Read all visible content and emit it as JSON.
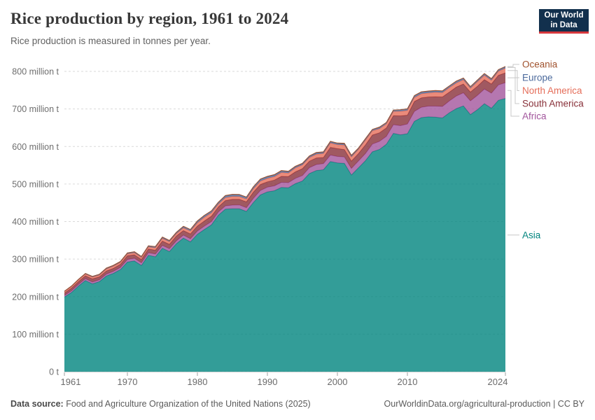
{
  "header": {
    "title": "Rice production by region, 1961 to 2024",
    "subtitle": "Rice production is measured in tonnes per year."
  },
  "logo": {
    "line1": "Our World",
    "line2": "in Data",
    "bg_color": "#12304d",
    "bar_color": "#d7383d"
  },
  "footer": {
    "source_label": "Data source:",
    "source_text": " Food and Agriculture Organization of the United Nations (2025)",
    "right_text": "OurWorldinData.org/agricultural-production | CC BY"
  },
  "chart_data": {
    "type": "area",
    "stacked": true,
    "title": "Rice production by region, 1961 to 2024",
    "subtitle": "Rice production is measured in tonnes per year.",
    "unit": "million tonnes per year",
    "xlabel": "",
    "ylabel": "",
    "ylim": [
      0,
      800
    ],
    "grid": "dashed-horizontal",
    "legend_position": "right",
    "x_ticks": [
      1961,
      1970,
      1980,
      1990,
      2000,
      2010,
      2024
    ],
    "y_ticks": [
      {
        "value": 0,
        "label": "0 t"
      },
      {
        "value": 100,
        "label": "100 million t"
      },
      {
        "value": 200,
        "label": "200 million t"
      },
      {
        "value": 300,
        "label": "300 million t"
      },
      {
        "value": 400,
        "label": "400 million t"
      },
      {
        "value": 500,
        "label": "500 million t"
      },
      {
        "value": 600,
        "label": "600 million t"
      },
      {
        "value": 700,
        "label": "700 million t"
      },
      {
        "value": 800,
        "label": "800 million t"
      }
    ],
    "years": [
      1961,
      1962,
      1963,
      1964,
      1965,
      1966,
      1967,
      1968,
      1969,
      1970,
      1971,
      1972,
      1973,
      1974,
      1975,
      1976,
      1977,
      1978,
      1979,
      1980,
      1981,
      1982,
      1983,
      1984,
      1985,
      1986,
      1987,
      1988,
      1989,
      1990,
      1991,
      1992,
      1993,
      1994,
      1995,
      1996,
      1997,
      1998,
      1999,
      2000,
      2001,
      2002,
      2003,
      2004,
      2005,
      2006,
      2007,
      2008,
      2009,
      2010,
      2011,
      2012,
      2013,
      2014,
      2015,
      2016,
      2017,
      2018,
      2019,
      2020,
      2021,
      2022,
      2023,
      2024
    ],
    "series": [
      {
        "name": "Asia",
        "color": "#00847E",
        "values": [
          199,
          211,
          228,
          243,
          234,
          240,
          255,
          262,
          272,
          292,
          295,
          283,
          310,
          306,
          329,
          320,
          341,
          356,
          346,
          366,
          379,
          391,
          417,
          433,
          434,
          434,
          427,
          451,
          471,
          479,
          482,
          491,
          490,
          501,
          508,
          528,
          536,
          538,
          560,
          556,
          555,
          524,
          543,
          562,
          586,
          592,
          606,
          635,
          631,
          634,
          667,
          677,
          679,
          678,
          676,
          690,
          701,
          708,
          685,
          698,
          714,
          702,
          723,
          728
        ]
      },
      {
        "name": "Africa",
        "color": "#A2559C",
        "values": [
          4.1,
          4.3,
          4.6,
          4.8,
          4.9,
          4.8,
          5.2,
          5.4,
          5.7,
          7.0,
          7.1,
          6.9,
          7.1,
          7.5,
          7.5,
          7.6,
          7.8,
          7.9,
          8.1,
          8.6,
          8.8,
          8.9,
          8.6,
          8.7,
          9.8,
          10.2,
          10.0,
          11.0,
          11.8,
          12.5,
          13.1,
          13.5,
          13.6,
          14.1,
          14.5,
          15.5,
          16.0,
          16.2,
          17.2,
          17.5,
          17.1,
          17.6,
          18.3,
          19.0,
          20.5,
          21.5,
          21.0,
          23.0,
          24.5,
          26.0,
          26.5,
          27.5,
          28.5,
          29.5,
          30.5,
          31.5,
          33.5,
          35.0,
          36.5,
          38.0,
          39.0,
          40.0,
          41.0,
          42.0
        ]
      },
      {
        "name": "South America",
        "color": "#883039",
        "values": [
          6.5,
          7.0,
          7.2,
          7.6,
          8.4,
          7.8,
          8.2,
          8.0,
          8.3,
          9.8,
          9.4,
          9.0,
          9.8,
          10.2,
          11.5,
          11.8,
          12.8,
          12.0,
          13.0,
          13.5,
          13.9,
          14.5,
          13.5,
          14.2,
          15.5,
          15.0,
          15.5,
          16.5,
          16.0,
          14.5,
          15.5,
          16.0,
          16.5,
          17.5,
          18.5,
          17.5,
          17.5,
          16.5,
          20.5,
          20.8,
          19.8,
          19.5,
          19.5,
          23.0,
          24.0,
          23.0,
          22.5,
          24.0,
          26.0,
          23.5,
          26.5,
          25.0,
          24.5,
          25.0,
          25.5,
          23.5,
          24.0,
          23.5,
          23.5,
          24.5,
          25.0,
          24.5,
          25.5,
          26.0
        ]
      },
      {
        "name": "North America",
        "color": "#E56E5A",
        "values": [
          3.3,
          4.0,
          4.3,
          4.5,
          4.6,
          4.8,
          5.3,
          5.6,
          5.1,
          5.0,
          5.3,
          5.3,
          5.5,
          6.4,
          7.3,
          6.9,
          6.4,
          7.3,
          7.7,
          8.5,
          9.9,
          8.9,
          7.5,
          8.0,
          7.7,
          7.5,
          7.6,
          9.0,
          9.0,
          9.0,
          9.2,
          10.2,
          9.0,
          10.5,
          9.9,
          9.7,
          10.1,
          10.5,
          11.5,
          10.6,
          11.8,
          11.2,
          11.2,
          12.7,
          11.3,
          10.7,
          10.8,
          11.2,
          12.2,
          12.5,
          10.5,
          11.0,
          10.5,
          11.9,
          11.3,
          12.1,
          11.0,
          11.4,
          10.3,
          12.2,
          11.7,
          9.6,
          11.0,
          12.5
        ]
      },
      {
        "name": "Europe",
        "color": "#4C6A9C",
        "values": [
          1.4,
          1.6,
          1.7,
          1.8,
          1.9,
          2.0,
          2.1,
          2.2,
          2.3,
          2.4,
          2.6,
          2.5,
          2.7,
          2.8,
          2.9,
          2.8,
          3.0,
          3.6,
          3.5,
          4.4,
          4.3,
          4.4,
          4.5,
          4.8,
          4.7,
          4.6,
          4.4,
          4.5,
          4.6,
          4.5,
          4.3,
          4.0,
          3.7,
          3.3,
          3.2,
          3.2,
          3.3,
          3.2,
          3.3,
          3.2,
          3.1,
          3.2,
          3.3,
          3.4,
          3.5,
          3.5,
          3.6,
          3.8,
          4.2,
          4.3,
          4.4,
          4.3,
          4.1,
          4.0,
          4.1,
          4.1,
          4.2,
          4.0,
          4.1,
          4.1,
          4.2,
          3.9,
          3.8,
          4.0
        ]
      },
      {
        "name": "Oceania",
        "color": "#A0522D",
        "values": [
          0.2,
          0.2,
          0.2,
          0.2,
          0.2,
          0.2,
          0.3,
          0.3,
          0.3,
          0.3,
          0.3,
          0.4,
          0.4,
          0.5,
          0.5,
          0.5,
          0.6,
          0.7,
          0.7,
          0.8,
          0.9,
          0.9,
          0.7,
          0.9,
          0.9,
          0.8,
          0.8,
          0.9,
          0.9,
          1.0,
          1.0,
          1.2,
          1.3,
          1.1,
          1.2,
          1.0,
          1.4,
          1.4,
          1.4,
          1.1,
          1.8,
          1.3,
          0.4,
          0.6,
          0.3,
          1.0,
          0.2,
          0.1,
          0.1,
          0.2,
          0.7,
          0.9,
          1.2,
          0.8,
          0.7,
          0.3,
          0.8,
          0.6,
          0.2,
          0.1,
          0.5,
          0.7,
          0.5,
          0.8
        ]
      }
    ]
  }
}
